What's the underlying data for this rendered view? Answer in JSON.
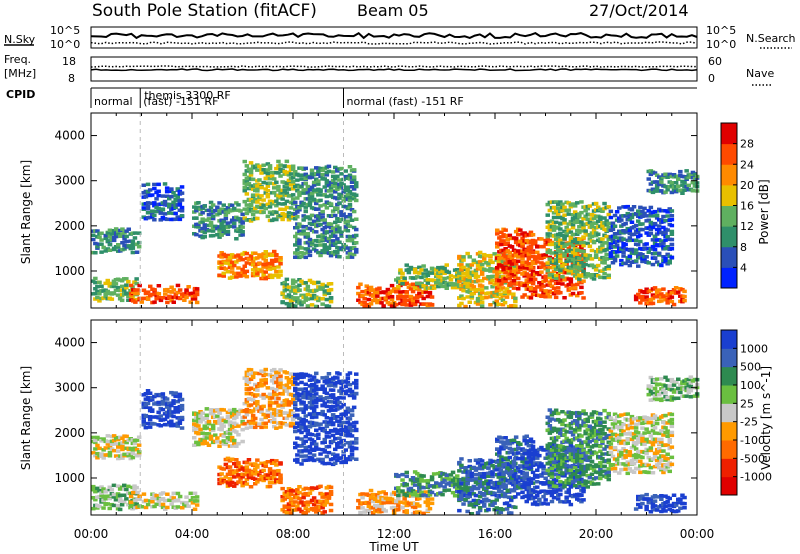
{
  "header": {
    "title": "South Pole Station (fitACF)",
    "beam": "Beam 05",
    "date": "27/Oct/2014"
  },
  "status_panels": {
    "nsky_label": "N.Sky",
    "nsky_ticks": [
      "10^5",
      "10^0"
    ],
    "nsearch_label": "N.Search",
    "nsearch_ticks": [
      "10^5",
      "10^0"
    ],
    "freq_label_1": "Freq.",
    "freq_label_2": "[MHz]",
    "freq_ticks": [
      "18",
      "8"
    ],
    "nave_label": "Nave",
    "nave_ticks": [
      "60",
      "0"
    ],
    "cpid_label": "CPID",
    "cpid_segments": [
      {
        "start_h": 0.0,
        "end_h": 1.95,
        "line1": "",
        "line2": "normal"
      },
      {
        "start_h": 1.95,
        "end_h": 10.0,
        "line1": "themis 3300 RF",
        "line2": "(fast) -151 RF"
      },
      {
        "start_h": 10.0,
        "end_h": 24.0,
        "line1": "",
        "line2": "normal (fast) -151 RF"
      }
    ]
  },
  "chart_data": [
    {
      "type": "heatmap",
      "parameter": "power",
      "xlabel": "Time UT",
      "ylabel": "Slant Range [km]",
      "xlim_hours": [
        0,
        24
      ],
      "ylim_km": [
        180,
        4500
      ],
      "x_ticks": [
        "00:00",
        "04:00",
        "08:00",
        "12:00",
        "16:00",
        "20:00",
        "00:00"
      ],
      "y_ticks": [
        1000,
        2000,
        3000,
        4000
      ],
      "colorbar": {
        "label": "Power [dB]",
        "ticks": [
          4,
          8,
          12,
          16,
          20,
          24,
          28
        ],
        "colors": [
          "#0022ff",
          "#2a4fb8",
          "#2f8f6a",
          "#5fb060",
          "#e8c000",
          "#ff8a00",
          "#ff4a00",
          "#e00000"
        ]
      },
      "echo_regions": [
        {
          "t0": 0.0,
          "t1": 1.9,
          "r0": 1500,
          "r1": 2000,
          "level": 2
        },
        {
          "t0": 0.0,
          "t1": 1.8,
          "r0": 400,
          "r1": 900,
          "level": 3
        },
        {
          "t0": 1.5,
          "t1": 4.2,
          "r0": 400,
          "r1": 750,
          "level": 6
        },
        {
          "t0": 2.0,
          "t1": 3.6,
          "r0": 2200,
          "r1": 3000,
          "level": 1
        },
        {
          "t0": 4.0,
          "t1": 6.0,
          "r0": 1800,
          "r1": 2600,
          "level": 2
        },
        {
          "t0": 5.0,
          "t1": 7.5,
          "r0": 900,
          "r1": 1500,
          "level": 5
        },
        {
          "t0": 6.0,
          "t1": 8.0,
          "r0": 2200,
          "r1": 3500,
          "level": 3
        },
        {
          "t0": 7.5,
          "t1": 9.5,
          "r0": 300,
          "r1": 900,
          "level": 3
        },
        {
          "t0": 8.0,
          "t1": 10.5,
          "r0": 1400,
          "r1": 3400,
          "level": 2
        },
        {
          "t0": 10.5,
          "t1": 13.5,
          "r0": 250,
          "r1": 800,
          "level": 6
        },
        {
          "t0": 12.0,
          "t1": 15.0,
          "r0": 700,
          "r1": 1200,
          "level": 3
        },
        {
          "t0": 14.5,
          "t1": 16.8,
          "r0": 300,
          "r1": 1500,
          "level": 4
        },
        {
          "t0": 16.0,
          "t1": 17.5,
          "r0": 700,
          "r1": 2000,
          "level": 6
        },
        {
          "t0": 17.0,
          "t1": 19.5,
          "r0": 500,
          "r1": 1800,
          "level": 6
        },
        {
          "t0": 18.0,
          "t1": 20.5,
          "r0": 900,
          "r1": 2600,
          "level": 3
        },
        {
          "t0": 20.5,
          "t1": 23.0,
          "r0": 1200,
          "r1": 2500,
          "level": 1
        },
        {
          "t0": 21.5,
          "t1": 23.5,
          "r0": 350,
          "r1": 700,
          "level": 6
        },
        {
          "t0": 22.0,
          "t1": 24.0,
          "r0": 2800,
          "r1": 3300,
          "level": 2
        }
      ]
    },
    {
      "type": "heatmap",
      "parameter": "velocity",
      "xlabel": "Time UT",
      "ylabel": "Slant Range [km]",
      "xlim_hours": [
        0,
        24
      ],
      "ylim_km": [
        180,
        4500
      ],
      "x_ticks": [
        "00:00",
        "04:00",
        "08:00",
        "12:00",
        "16:00",
        "20:00",
        "00:00"
      ],
      "y_ticks": [
        1000,
        2000,
        3000,
        4000
      ],
      "colorbar": {
        "label": "Velocity [m s^-1]",
        "ticks": [
          "1000",
          "500",
          "100",
          "25",
          "-25",
          "-100",
          "-500",
          "-1000"
        ],
        "colors": [
          "#1a3fd0",
          "#3a62b8",
          "#2e8a50",
          "#6abf40",
          "#c8c8c8",
          "#ff9a00",
          "#ff6a00",
          "#ee2000",
          "#e00000"
        ]
      },
      "echo_regions": [
        {
          "t0": 0.0,
          "t1": 1.9,
          "r0": 1500,
          "r1": 2000,
          "level": 4
        },
        {
          "t0": 0.0,
          "t1": 1.8,
          "r0": 400,
          "r1": 900,
          "level": 3
        },
        {
          "t0": 1.5,
          "t1": 4.2,
          "r0": 400,
          "r1": 750,
          "level": 4
        },
        {
          "t0": 2.0,
          "t1": 3.6,
          "r0": 2200,
          "r1": 3000,
          "level": 0
        },
        {
          "t0": 4.0,
          "t1": 6.0,
          "r0": 1800,
          "r1": 2600,
          "level": 4
        },
        {
          "t0": 5.0,
          "t1": 7.5,
          "r0": 900,
          "r1": 1500,
          "level": 6
        },
        {
          "t0": 6.0,
          "t1": 8.0,
          "r0": 2200,
          "r1": 3500,
          "level": 5
        },
        {
          "t0": 7.5,
          "t1": 9.5,
          "r0": 300,
          "r1": 900,
          "level": 6
        },
        {
          "t0": 8.0,
          "t1": 10.5,
          "r0": 1400,
          "r1": 3400,
          "level": 0
        },
        {
          "t0": 10.5,
          "t1": 13.5,
          "r0": 250,
          "r1": 800,
          "level": 5
        },
        {
          "t0": 12.0,
          "t1": 15.0,
          "r0": 700,
          "r1": 1200,
          "level": 2
        },
        {
          "t0": 14.5,
          "t1": 16.8,
          "r0": 300,
          "r1": 1500,
          "level": 1
        },
        {
          "t0": 16.0,
          "t1": 17.5,
          "r0": 700,
          "r1": 2000,
          "level": 1
        },
        {
          "t0": 17.0,
          "t1": 19.5,
          "r0": 500,
          "r1": 1800,
          "level": 0
        },
        {
          "t0": 18.0,
          "t1": 20.5,
          "r0": 900,
          "r1": 2600,
          "level": 2
        },
        {
          "t0": 20.5,
          "t1": 23.0,
          "r0": 1200,
          "r1": 2500,
          "level": 4
        },
        {
          "t0": 21.5,
          "t1": 23.5,
          "r0": 350,
          "r1": 700,
          "level": 0
        },
        {
          "t0": 22.0,
          "t1": 24.0,
          "r0": 2800,
          "r1": 3300,
          "level": 3
        }
      ]
    }
  ]
}
